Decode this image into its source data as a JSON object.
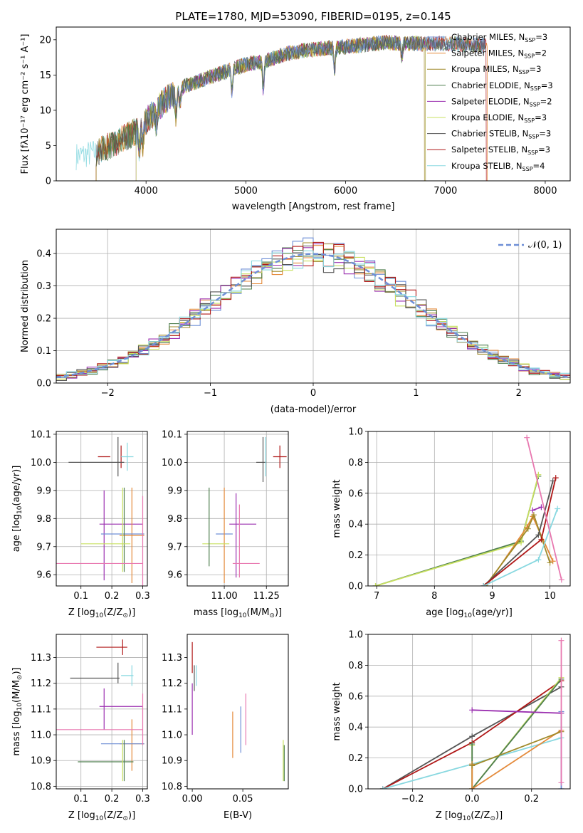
{
  "figure": {
    "title": "PLATE=1780, MJD=53090, FIBERID=0195, z=0.145"
  },
  "colors": {
    "chabrier_miles": "#6f8fd6",
    "salpeter_miles": "#e48a3a",
    "kroupa_miles": "#a08a2a",
    "chabrier_elodie": "#4f7f4f",
    "salpeter_elodie": "#9b30b0",
    "kroupa_elodie": "#c8e060",
    "chabrier_stelib": "#555555",
    "salpeter_stelib": "#b01818",
    "kroupa_stelib": "#88d8e0",
    "normal_curve": "#6f8fd6",
    "pink": "#e878b0",
    "green": "#7cc83a"
  },
  "chart_data": [
    {
      "id": "spectrum",
      "type": "line",
      "xlabel": "wavelength [Angstrom, rest frame]",
      "ylabel": "Flux [f",
      "ylabel_tex": "λ10⁻¹⁷ erg cm⁻² s⁻¹ A⁻¹]",
      "xlim": [
        3100,
        8250
      ],
      "ylim": [
        0,
        21.8
      ],
      "xticks": [
        4000,
        5000,
        6000,
        7000,
        8000
      ],
      "yticks": [
        0,
        5,
        10,
        15,
        20
      ],
      "legend_position": "top-right",
      "legend": [
        {
          "label": "Chabrier MILES, N",
          "sub": "SSP",
          "tail": "=3",
          "color": "#6f8fd6"
        },
        {
          "label": "Salpeter MILES, N",
          "sub": "SSP",
          "tail": "=2",
          "color": "#e48a3a"
        },
        {
          "label": "Kroupa MILES, N",
          "sub": "SSP",
          "tail": "=3",
          "color": "#a08a2a"
        },
        {
          "label": "Chabrier ELODIE, N",
          "sub": "SSP",
          "tail": "=3",
          "color": "#4f7f4f"
        },
        {
          "label": "Salpeter ELODIE, N",
          "sub": "SSP",
          "tail": "=2",
          "color": "#9b30b0"
        },
        {
          "label": "Kroupa ELODIE, N",
          "sub": "SSP",
          "tail": "=3",
          "color": "#c8e060"
        },
        {
          "label": "Chabrier STELIB, N",
          "sub": "SSP",
          "tail": "=3",
          "color": "#555555"
        },
        {
          "label": "Salpeter STELIB, N",
          "sub": "SSP",
          "tail": "=3",
          "color": "#b01818"
        },
        {
          "label": "Kroupa STELIB, N",
          "sub": "SSP",
          "tail": "=4",
          "color": "#88d8e0"
        }
      ],
      "continuum": [
        [
          3300,
          3.5
        ],
        [
          3500,
          4.0
        ],
        [
          3700,
          5.5
        ],
        [
          3900,
          7.0
        ],
        [
          4000,
          8.5
        ],
        [
          4200,
          11.5
        ],
        [
          4400,
          13.5
        ],
        [
          4600,
          14.5
        ],
        [
          4800,
          15.5
        ],
        [
          5000,
          16.5
        ],
        [
          5200,
          17.0
        ],
        [
          5400,
          18.0
        ],
        [
          5600,
          18.5
        ],
        [
          5800,
          18.8
        ],
        [
          6000,
          19.0
        ],
        [
          6200,
          19.3
        ],
        [
          6400,
          19.6
        ],
        [
          6600,
          19.5
        ],
        [
          6800,
          19.4
        ],
        [
          7000,
          19.5
        ],
        [
          7200,
          19.3
        ],
        [
          7400,
          19.2
        ]
      ],
      "dips": [
        [
          3934,
          3
        ],
        [
          3968,
          3
        ],
        [
          4102,
          2
        ],
        [
          4300,
          3
        ],
        [
          4340,
          2
        ],
        [
          4861,
          3
        ],
        [
          5175,
          4
        ],
        [
          5890,
          3
        ],
        [
          6563,
          2
        ]
      ],
      "segments": [
        {
          "color": "#88d8e0",
          "x0": 3300,
          "x1": 7400,
          "drop_left": false,
          "drop_right": false,
          "width": 0.8
        },
        {
          "color": "#e48a3a",
          "x0": 3500,
          "x1": 7420,
          "drop_left": true,
          "drop_right": true,
          "width": 0.8
        },
        {
          "color": "#b01818",
          "x0": 3500,
          "x1": 7410,
          "drop_left": true,
          "drop_right": true,
          "width": 0.8
        },
        {
          "color": "#9b30b0",
          "x0": 3900,
          "x1": 6800,
          "drop_left": true,
          "drop_right": true,
          "width": 0.8
        },
        {
          "color": "#c8e060",
          "x0": 3900,
          "x1": 6800,
          "drop_left": true,
          "drop_right": true,
          "width": 0.8
        },
        {
          "color": "#a08a2a",
          "x0": 3500,
          "x1": 6790,
          "drop_left": true,
          "drop_right": true,
          "width": 0.8
        },
        {
          "color": "#4f7f4f",
          "x0": 3500,
          "x1": 7400,
          "drop_left": false,
          "drop_right": false,
          "width": 0.8
        },
        {
          "color": "#6f8fd6",
          "x0": 3900,
          "x1": 7400,
          "drop_left": false,
          "drop_right": false,
          "width": 0.8
        },
        {
          "color": "#555555",
          "x0": 3500,
          "x1": 7400,
          "drop_left": false,
          "drop_right": false,
          "width": 0.6
        }
      ]
    },
    {
      "id": "residuals",
      "type": "histogram",
      "xlabel": "(data-model)/error",
      "ylabel": "Normed distribution",
      "xlim": [
        -2.5,
        2.5
      ],
      "ylim": [
        0,
        0.475
      ],
      "xticks": [
        -2,
        -1,
        0,
        1,
        2
      ],
      "yticks": [
        0.0,
        0.1,
        0.2,
        0.3,
        0.4
      ],
      "grid": true,
      "legend_position": "top-right",
      "legend_label": "𝒩(0, 1)",
      "bin_width": 0.1
    },
    {
      "id": "age_vs_Z",
      "type": "errorbar",
      "xlabel": "Z [log",
      "xlabel_rest": "(Z/Z",
      "ylabel": "age  [log",
      "ylabel_rest": "(age/yr)]",
      "xlim": [
        0.02,
        0.315
      ],
      "ylim": [
        9.56,
        10.11
      ],
      "xticks": [
        0.1,
        0.2,
        0.3
      ],
      "yticks": [
        9.6,
        9.7,
        9.8,
        9.9,
        10.0,
        10.1
      ],
      "grid": true,
      "points": [
        {
          "x": 0.175,
          "y": 10.02,
          "xerr": 0.02,
          "yerr": 0.0,
          "color": "#b01818"
        },
        {
          "x": 0.23,
          "y": 10.02,
          "xerr": 0.0,
          "yerr": 0.04,
          "color": "#b01818"
        },
        {
          "x": 0.25,
          "y": 10.02,
          "xerr": 0.02,
          "yerr": 0.05,
          "color": "#88d8e0"
        },
        {
          "x": 0.15,
          "y": 10.0,
          "xerr": 0.09,
          "yerr": 0.0,
          "color": "#555555"
        },
        {
          "x": 0.22,
          "y": 10.02,
          "xerr": 0.0,
          "yerr": 0.07,
          "color": "#555555"
        },
        {
          "x": 0.23,
          "y": 9.78,
          "xerr": 0.07,
          "yerr": 0.0,
          "color": "#9b30b0"
        },
        {
          "x": 0.175,
          "y": 9.74,
          "xerr": 0.0,
          "yerr": 0.16,
          "color": "#9b30b0"
        },
        {
          "x": 0.265,
          "y": 9.74,
          "xerr": 0.04,
          "yerr": 0.17,
          "color": "#e48a3a"
        },
        {
          "x": 0.235,
          "y": 9.745,
          "xerr": 0.07,
          "yerr": 0.0,
          "color": "#6f8fd6"
        },
        {
          "x": 0.24,
          "y": 9.76,
          "xerr": 0.0,
          "yerr": 0.15,
          "color": "#4f7f4f"
        },
        {
          "x": 0.18,
          "y": 9.71,
          "xerr": 0.08,
          "yerr": 0.0,
          "color": "#c8e060"
        },
        {
          "x": 0.235,
          "y": 9.76,
          "xerr": 0.0,
          "yerr": 0.15,
          "color": "#c8e060"
        },
        {
          "x": 0.16,
          "y": 9.64,
          "xerr": 0.14,
          "yerr": 0.0,
          "color": "#e878b0"
        },
        {
          "x": 0.3,
          "y": 9.72,
          "xerr": 0.0,
          "yerr": 0.16,
          "color": "#e878b0"
        }
      ]
    },
    {
      "id": "age_vs_mass",
      "type": "errorbar",
      "xlabel": "mass [log",
      "xlabel_rest": "(M/M",
      "ylabel": "",
      "xlim": [
        10.78,
        11.38
      ],
      "ylim": [
        9.56,
        10.11
      ],
      "xticks": [
        11.0,
        11.25
      ],
      "yticks": [
        9.6,
        9.7,
        9.8,
        9.9,
        10.0,
        10.1
      ],
      "grid": true,
      "points": [
        {
          "x": 11.33,
          "y": 10.02,
          "xerr": 0.04,
          "yerr": 0.04,
          "color": "#b01818"
        },
        {
          "x": 11.22,
          "y": 10.0,
          "xerr": 0.03,
          "yerr": 0.0,
          "color": "#555555"
        },
        {
          "x": 11.23,
          "y": 10.01,
          "xerr": 0.0,
          "yerr": 0.08,
          "color": "#555555"
        },
        {
          "x": 11.245,
          "y": 10.02,
          "xerr": 0.0,
          "yerr": 0.07,
          "color": "#88d8e0"
        },
        {
          "x": 11.11,
          "y": 9.78,
          "xerr": 0.08,
          "yerr": 0.0,
          "color": "#9b30b0"
        },
        {
          "x": 11.07,
          "y": 9.74,
          "xerr": 0.0,
          "yerr": 0.15,
          "color": "#9b30b0"
        },
        {
          "x": 11.0,
          "y": 9.745,
          "xerr": 0.05,
          "yerr": 0.0,
          "color": "#6f8fd6"
        },
        {
          "x": 11.0,
          "y": 9.74,
          "xerr": 0.0,
          "yerr": 0.17,
          "color": "#e48a3a"
        },
        {
          "x": 10.95,
          "y": 9.71,
          "xerr": 0.08,
          "yerr": 0.0,
          "color": "#c8e060"
        },
        {
          "x": 10.91,
          "y": 9.77,
          "xerr": 0.0,
          "yerr": 0.14,
          "color": "#4f7f4f"
        },
        {
          "x": 11.13,
          "y": 9.64,
          "xerr": 0.08,
          "yerr": 0.0,
          "color": "#e878b0"
        },
        {
          "x": 11.09,
          "y": 9.72,
          "xerr": 0.0,
          "yerr": 0.13,
          "color": "#e878b0"
        }
      ]
    },
    {
      "id": "weight_vs_age",
      "type": "line",
      "xlabel": "age  [log",
      "xlabel_rest": "(age/yr)]",
      "ylabel": "mass weight",
      "xlim": [
        6.85,
        10.35
      ],
      "ylim": [
        0.0,
        1.0
      ],
      "xticks": [
        7,
        8,
        9,
        10
      ],
      "yticks": [
        0.0,
        0.2,
        0.4,
        0.6,
        0.8,
        1.0
      ],
      "grid": true,
      "series": [
        {
          "color": "#4f7f4f",
          "x": [
            6.98,
            9.5,
            9.8
          ],
          "y": [
            0.0,
            0.29,
            0.71
          ]
        },
        {
          "color": "#c8e060",
          "x": [
            6.98,
            9.5,
            9.8
          ],
          "y": [
            0.0,
            0.28,
            0.72
          ]
        },
        {
          "color": "#e48a3a",
          "x": [
            8.9,
            9.6,
            9.7,
            10.05
          ],
          "y": [
            0.0,
            0.38,
            0.45,
            0.16
          ]
        },
        {
          "color": "#a08a2a",
          "x": [
            8.88,
            9.62,
            9.72,
            10.0
          ],
          "y": [
            0.0,
            0.37,
            0.46,
            0.15
          ]
        },
        {
          "color": "#9b30b0",
          "x": [
            9.7,
            9.85
          ],
          "y": [
            0.49,
            0.51
          ]
        },
        {
          "color": "#555555",
          "x": [
            8.85,
            9.8,
            10.05
          ],
          "y": [
            0.0,
            0.33,
            0.68
          ]
        },
        {
          "color": "#b01818",
          "x": [
            8.85,
            9.85,
            10.1
          ],
          "y": [
            0.0,
            0.3,
            0.7
          ]
        },
        {
          "color": "#88d8e0",
          "x": [
            8.85,
            9.8,
            10.13
          ],
          "y": [
            0.0,
            0.17,
            0.5
          ]
        },
        {
          "color": "#e878b0",
          "x": [
            9.6,
            10.2
          ],
          "y": [
            0.96,
            0.04
          ]
        }
      ]
    },
    {
      "id": "mass_vs_Z",
      "type": "errorbar",
      "xlabel": "Z [log",
      "xlabel_rest": "(Z/Z",
      "ylabel": "mass [log",
      "ylabel_rest": "(M/M",
      "xlim": [
        0.02,
        0.315
      ],
      "ylim": [
        10.79,
        11.39
      ],
      "xticks": [
        0.1,
        0.2,
        0.3
      ],
      "yticks": [
        10.8,
        10.9,
        11.0,
        11.1,
        11.2,
        11.3
      ],
      "grid": true,
      "points": [
        {
          "x": 0.2,
          "y": 11.34,
          "xerr": 0.05,
          "yerr": 0.0,
          "color": "#b01818"
        },
        {
          "x": 0.235,
          "y": 11.34,
          "xerr": 0.0,
          "yerr": 0.03,
          "color": "#b01818"
        },
        {
          "x": 0.145,
          "y": 11.22,
          "xerr": 0.08,
          "yerr": 0.0,
          "color": "#555555"
        },
        {
          "x": 0.22,
          "y": 11.24,
          "xerr": 0.0,
          "yerr": 0.04,
          "color": "#555555"
        },
        {
          "x": 0.25,
          "y": 11.23,
          "xerr": 0.02,
          "yerr": 0.0,
          "color": "#88d8e0"
        },
        {
          "x": 0.265,
          "y": 11.23,
          "xerr": 0.0,
          "yerr": 0.04,
          "color": "#88d8e0"
        },
        {
          "x": 0.23,
          "y": 11.11,
          "xerr": 0.07,
          "yerr": 0.0,
          "color": "#9b30b0"
        },
        {
          "x": 0.175,
          "y": 11.1,
          "xerr": 0.0,
          "yerr": 0.08,
          "color": "#9b30b0"
        },
        {
          "x": 0.265,
          "y": 10.965,
          "xerr": 0.04,
          "yerr": 0.0,
          "color": "#e48a3a"
        },
        {
          "x": 0.265,
          "y": 10.96,
          "xerr": 0.0,
          "yerr": 0.1,
          "color": "#e48a3a"
        },
        {
          "x": 0.235,
          "y": 10.965,
          "xerr": 0.07,
          "yerr": 0.0,
          "color": "#6f8fd6"
        },
        {
          "x": 0.18,
          "y": 10.895,
          "xerr": 0.09,
          "yerr": 0.0,
          "color": "#4f7f4f"
        },
        {
          "x": 0.24,
          "y": 10.9,
          "xerr": 0.0,
          "yerr": 0.08,
          "color": "#4f7f4f"
        },
        {
          "x": 0.235,
          "y": 10.9,
          "xerr": 0.0,
          "yerr": 0.08,
          "color": "#c8e060"
        },
        {
          "x": 0.16,
          "y": 11.02,
          "xerr": 0.14,
          "yerr": 0.0,
          "color": "#e878b0"
        },
        {
          "x": 0.3,
          "y": 11.06,
          "xerr": 0.0,
          "yerr": 0.1,
          "color": "#e878b0"
        }
      ]
    },
    {
      "id": "mass_vs_ebv",
      "type": "errorbar",
      "xlabel": "E(B-V)",
      "ylabel": "",
      "xlim": [
        -0.005,
        0.095
      ],
      "ylim": [
        10.79,
        11.39
      ],
      "xticks": [
        0.0,
        0.05
      ],
      "yticks": [
        10.8,
        10.9,
        11.0,
        11.1,
        11.2,
        11.3
      ],
      "grid": false,
      "points": [
        {
          "x": 0.0,
          "y": 11.3,
          "xerr": 0.0,
          "yerr": 0.06,
          "color": "#b01818"
        },
        {
          "x": 0.0,
          "y": 11.1,
          "xerr": 0.0,
          "yerr": 0.1,
          "color": "#9b30b0"
        },
        {
          "x": 0.002,
          "y": 11.22,
          "xerr": 0.0,
          "yerr": 0.05,
          "color": "#555555"
        },
        {
          "x": 0.004,
          "y": 11.23,
          "xerr": 0.0,
          "yerr": 0.04,
          "color": "#88d8e0"
        },
        {
          "x": 0.04,
          "y": 11.0,
          "xerr": 0.0,
          "yerr": 0.09,
          "color": "#e48a3a"
        },
        {
          "x": 0.048,
          "y": 11.02,
          "xerr": 0.0,
          "yerr": 0.09,
          "color": "#6f8fd6"
        },
        {
          "x": 0.053,
          "y": 11.06,
          "xerr": 0.0,
          "yerr": 0.1,
          "color": "#e878b0"
        },
        {
          "x": 0.09,
          "y": 10.9,
          "xerr": 0.0,
          "yerr": 0.08,
          "color": "#c8e060"
        },
        {
          "x": 0.091,
          "y": 10.89,
          "xerr": 0.0,
          "yerr": 0.07,
          "color": "#4f7f4f"
        }
      ]
    },
    {
      "id": "weight_vs_Z",
      "type": "line",
      "xlabel": "Z [log",
      "xlabel_rest": "(Z/Z",
      "ylabel": "mass weight",
      "xlim": [
        -0.35,
        0.33
      ],
      "ylim": [
        0.0,
        1.0
      ],
      "xticks": [
        -0.2,
        0.0,
        0.2
      ],
      "yticks": [
        0.0,
        0.2,
        0.4,
        0.6,
        0.8,
        1.0
      ],
      "grid": true,
      "series": [
        {
          "color": "#555555",
          "x": [
            -0.3,
            0.0,
            0.3
          ],
          "y": [
            0.0,
            0.34,
            0.66
          ]
        },
        {
          "color": "#b01818",
          "x": [
            -0.3,
            0.0,
            0.3
          ],
          "y": [
            0.0,
            0.3,
            0.7
          ]
        },
        {
          "color": "#88d8e0",
          "x": [
            -0.3,
            0.0,
            0.3
          ],
          "y": [
            0.0,
            0.16,
            0.33
          ]
        },
        {
          "color": "#c8e060",
          "x": [
            0.0,
            0.0,
            0.3
          ],
          "y": [
            0.28,
            0.0,
            0.72
          ]
        },
        {
          "color": "#4f7f4f",
          "x": [
            0.0,
            0.0,
            0.3
          ],
          "y": [
            0.29,
            0.0,
            0.71
          ]
        },
        {
          "color": "#e48a3a",
          "x": [
            0.0,
            0.0,
            0.3
          ],
          "y": [
            0.16,
            0.0,
            0.38
          ]
        },
        {
          "color": "#a08a2a",
          "x": [
            0.0,
            0.3
          ],
          "y": [
            0.15,
            0.37
          ]
        },
        {
          "color": "#9b30b0",
          "x": [
            0.0,
            0.3
          ],
          "y": [
            0.51,
            0.49
          ]
        },
        {
          "color": "#6f8fd6",
          "x": [
            0.3,
            0.3
          ],
          "y": [
            0.0,
            0.5
          ]
        },
        {
          "color": "#e878b0",
          "x": [
            0.3,
            0.3
          ],
          "y": [
            0.04,
            0.96
          ]
        }
      ]
    }
  ]
}
